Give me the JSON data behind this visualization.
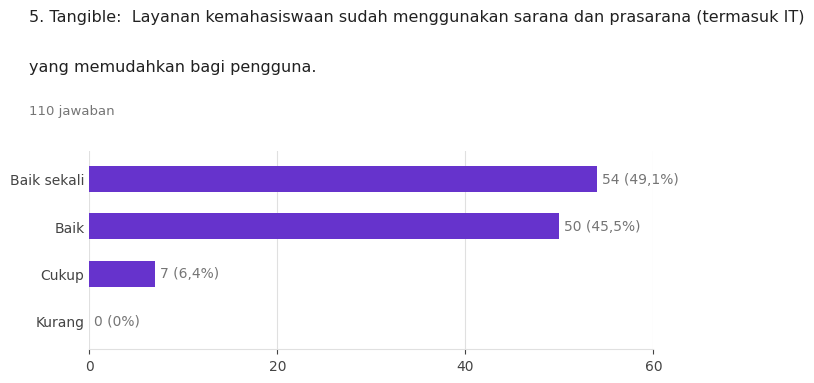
{
  "title_line1": "5. Tangible:  Layanan kemahasiswaan sudah menggunakan sarana dan prasarana (termasuk IT)",
  "title_line2": "yang memudahkan bagi pengguna.",
  "subtitle": "110 jawaban",
  "categories": [
    "Baik sekali",
    "Baik",
    "Cukup",
    "Kurang"
  ],
  "values": [
    54,
    50,
    7,
    0
  ],
  "labels": [
    "54 (49,1%)",
    "50 (45,5%)",
    "7 (6,4%)",
    "0 (0%)"
  ],
  "bar_color": "#6633cc",
  "background_color": "#ffffff",
  "xlim": [
    0,
    60
  ],
  "xticks": [
    0,
    20,
    40,
    60
  ],
  "bar_height": 0.55,
  "title_fontsize": 11.5,
  "subtitle_fontsize": 9.5,
  "tick_fontsize": 10,
  "label_fontsize": 10,
  "grid_color": "#e0e0e0",
  "text_color": "#757575",
  "ytick_color": "#444444"
}
